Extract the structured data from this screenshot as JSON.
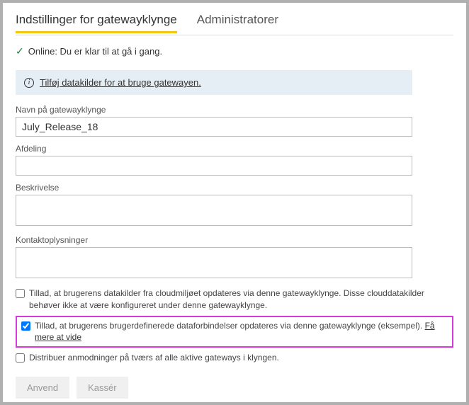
{
  "tabs": {
    "settings": "Indstillinger for gatewayklynge",
    "admins": "Administratorer"
  },
  "status": {
    "text": "Online: Du er klar til at gå i gang."
  },
  "infoBar": {
    "link": "Tilføj datakilder for at bruge gatewayen."
  },
  "fields": {
    "nameLabel": "Navn på gatewayklynge",
    "nameValue": "July_Release_18",
    "deptLabel": "Afdeling",
    "deptValue": "",
    "descLabel": "Beskrivelse",
    "descValue": "",
    "contactLabel": "Kontaktoplysninger",
    "contactValue": ""
  },
  "checkboxes": {
    "cloud": "Tillad, at brugerens datakilder fra cloudmiljøet opdateres via denne gatewayklynge. Disse clouddatakilder behøver ikke at være konfigureret under denne gatewayklynge.",
    "custom": "Tillad, at brugerens brugerdefinerede dataforbindelser opdateres via denne gatewayklynge (eksempel). ",
    "customLearnMore": "Få mere at vide",
    "distribute": "Distribuer anmodninger på tværs af alle aktive gateways i klyngen."
  },
  "buttons": {
    "apply": "Anvend",
    "discard": "Kassér"
  }
}
